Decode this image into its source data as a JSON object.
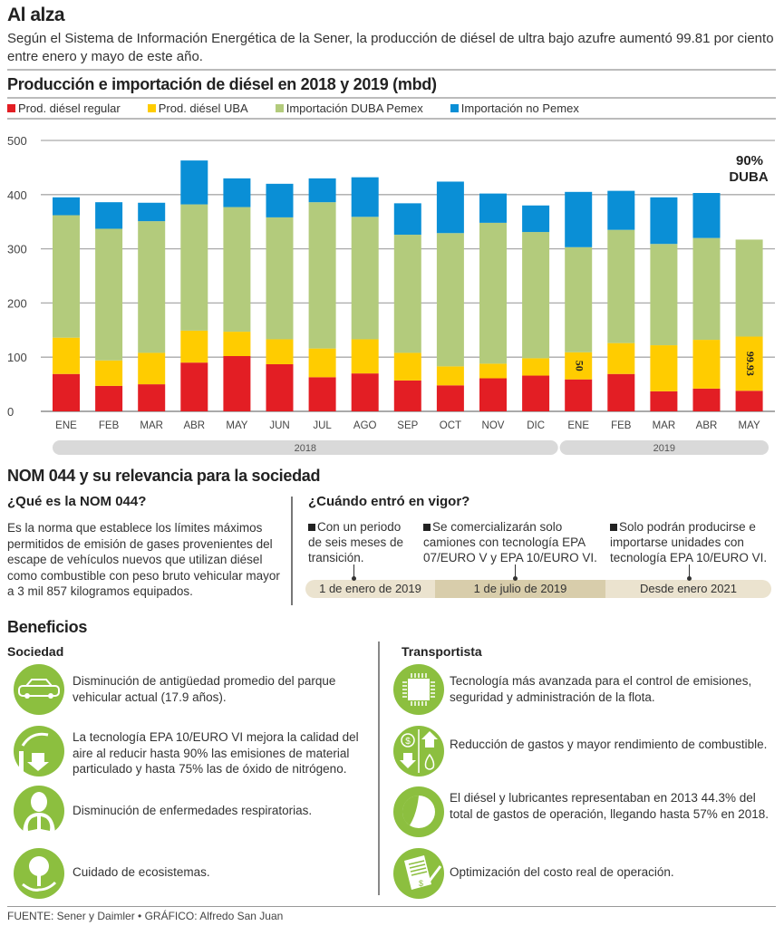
{
  "header": {
    "title": "Al alza",
    "subtitle": "Según el Sistema de Información Energética de la Sener, la producción de diésel de ultra bajo azufre aumentó 99.81 por ciento entre enero y mayo de este año."
  },
  "chart_data": {
    "type": "bar",
    "stacked": true,
    "title": "Producción e importación de diésel en 2018 y 2019 (mbd)",
    "categories": [
      "ENE",
      "FEB",
      "MAR",
      "ABR",
      "MAY",
      "JUN",
      "JUL",
      "AGO",
      "SEP",
      "OCT",
      "NOV",
      "DIC",
      "ENE",
      "FEB",
      "MAR",
      "ABR",
      "MAY"
    ],
    "year_groups": [
      {
        "label": "2018",
        "count": 12
      },
      {
        "label": "2019",
        "count": 5
      }
    ],
    "yticks": [
      0,
      100,
      200,
      300,
      400,
      500
    ],
    "ylim": [
      0,
      500
    ],
    "grid": true,
    "legend_position": "top",
    "series": [
      {
        "name": "Prod. diésel regular",
        "color": "#e31e24",
        "values": [
          69,
          47,
          50,
          90,
          102,
          87,
          63,
          70,
          57,
          48,
          61,
          66,
          59,
          69,
          37,
          42,
          38
        ]
      },
      {
        "name": "Prod. diésel UBA",
        "color": "#ffcc00",
        "values": [
          67,
          47,
          58,
          59,
          45,
          46,
          53,
          63,
          51,
          35,
          27,
          32,
          50,
          57,
          85,
          90,
          100
        ]
      },
      {
        "name": "Importación DUBA Pemex",
        "color": "#b3cb7c",
        "values": [
          226,
          243,
          243,
          233,
          230,
          225,
          270,
          226,
          218,
          246,
          260,
          233,
          194,
          209,
          187,
          188,
          179
        ]
      },
      {
        "name": "Importación no Pemex",
        "color": "#0a8fd6",
        "values": [
          33,
          49,
          34,
          81,
          53,
          62,
          44,
          73,
          58,
          95,
          54,
          49,
          102,
          72,
          86,
          83,
          0
        ]
      }
    ],
    "annotations": [
      {
        "text": "50",
        "category_index": 12,
        "series": "Prod. diésel UBA",
        "rotated": true
      },
      {
        "text": "99.93",
        "category_index": 16,
        "series": "Prod. diésel UBA",
        "rotated": true
      },
      {
        "text": "90%",
        "category_index": 16
      },
      {
        "text": "DUBA",
        "category_index": 16
      }
    ]
  },
  "nom": {
    "title": "NOM 044 y su relevancia para la sociedad",
    "what_title": "¿Qué es la NOM 044?",
    "what_text": "Es la norma que establece los límites máximos permitidos de emisión de gases provenientes del escape de vehículos nuevos que utilizan diésel como combustible con peso bruto vehicular mayor a 3 mil 857 kilogramos equipados.",
    "when_title": "¿Cuándo entró en vigor?",
    "timeline": [
      {
        "text": "Con un periodo de seis meses de transición.",
        "date": "1 de enero de 2019"
      },
      {
        "text": "Se comercializarán solo camiones con tecnología EPA 07/EURO V y EPA 10/EURO VI.",
        "date": "1 de julio de 2019"
      },
      {
        "text": "Solo podrán producirse e importarse unidades con tecnología EPA 10/EURO VI.",
        "date": "Desde enero 2021"
      }
    ]
  },
  "benefits": {
    "title": "Beneficios",
    "icon_color": "#8cbf3f",
    "sociedad": {
      "title": "Sociedad",
      "items": [
        {
          "icon": "car-icon",
          "text": "Disminución de antigüedad promedio del parque vehicular actual (17.9 años)."
        },
        {
          "icon": "factory-emissions-icon",
          "text": "La tecnología EPA 10/EURO VI mejora la calidad del aire al reducir hasta 90% las emisiones de material particulado y hasta 75% las de óxido de nitrógeno."
        },
        {
          "icon": "lungs-icon",
          "text": "Disminución de enfermedades respiratorias."
        },
        {
          "icon": "tree-hand-icon",
          "text": "Cuidado de ecosistemas."
        }
      ]
    },
    "transportista": {
      "title": "Transportista",
      "items": [
        {
          "icon": "chip-icon",
          "text": "Tecnología más avanzada para el control de emisiones, seguridad y administración de la flota."
        },
        {
          "icon": "money-fuel-icon",
          "text": "Reducción de gastos y mayor rendimiento de combustible."
        },
        {
          "icon": "pie-chart-icon",
          "text": "El diésel y lubricantes representaban en 2013 44.3% del total de gastos de operación, llegando hasta 57% en 2018."
        },
        {
          "icon": "invoice-icon",
          "text": "Optimización del costo real de operación."
        }
      ]
    }
  },
  "footer": "FUENTE: Sener y Daimler • GRÁFICO: Alfredo San Juan"
}
